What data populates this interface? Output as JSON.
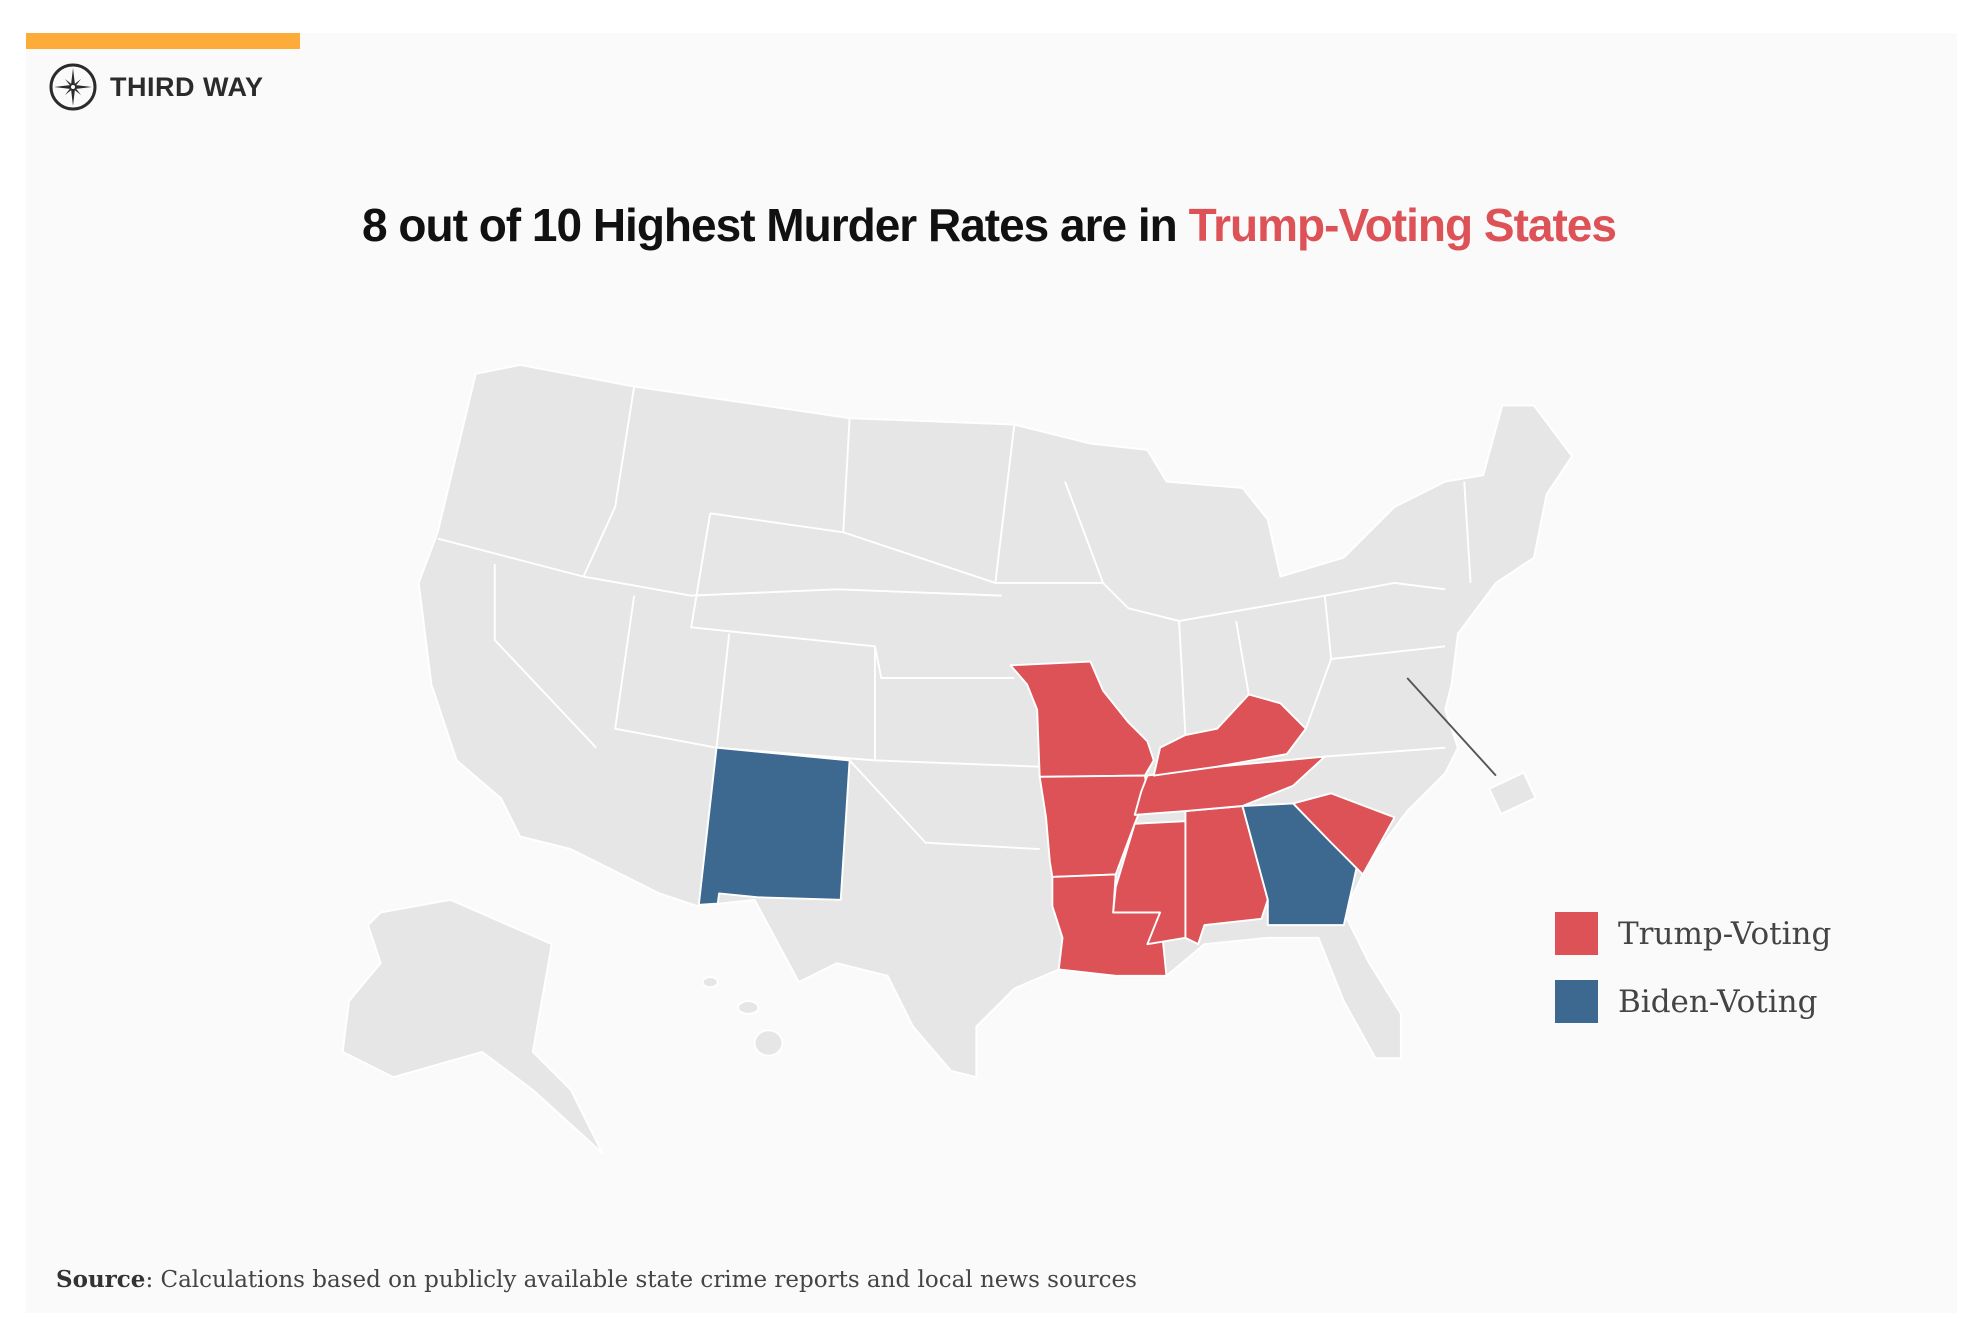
{
  "brand": {
    "name": "THIRD WAY",
    "logo_icon": "compass-icon",
    "accent_bar_color": "#fdac3a"
  },
  "chart_data": {
    "type": "choropleth-map",
    "title": {
      "prefix": "8 out of 10 Highest Murder Rates are in ",
      "highlight": "Trump-Voting States"
    },
    "legend": [
      {
        "label": "Trump-Voting",
        "color": "#dd5257"
      },
      {
        "label": "Biden-Voting",
        "color": "#3d6990"
      }
    ],
    "legend_placement": "right",
    "base_color": "#e6e6e6",
    "highlighted_states": [
      {
        "state": "Missouri",
        "group": "Trump-Voting"
      },
      {
        "state": "Arkansas",
        "group": "Trump-Voting"
      },
      {
        "state": "Louisiana",
        "group": "Trump-Voting"
      },
      {
        "state": "Mississippi",
        "group": "Trump-Voting"
      },
      {
        "state": "Alabama",
        "group": "Trump-Voting"
      },
      {
        "state": "Tennessee",
        "group": "Trump-Voting"
      },
      {
        "state": "Kentucky",
        "group": "Trump-Voting"
      },
      {
        "state": "South Carolina",
        "group": "Trump-Voting"
      },
      {
        "state": "New Mexico",
        "group": "Biden-Voting"
      },
      {
        "state": "Georgia",
        "group": "Biden-Voting"
      }
    ]
  },
  "source": {
    "label": "Source",
    "text": ": Calculations based on publicly available state crime reports and local news sources"
  }
}
